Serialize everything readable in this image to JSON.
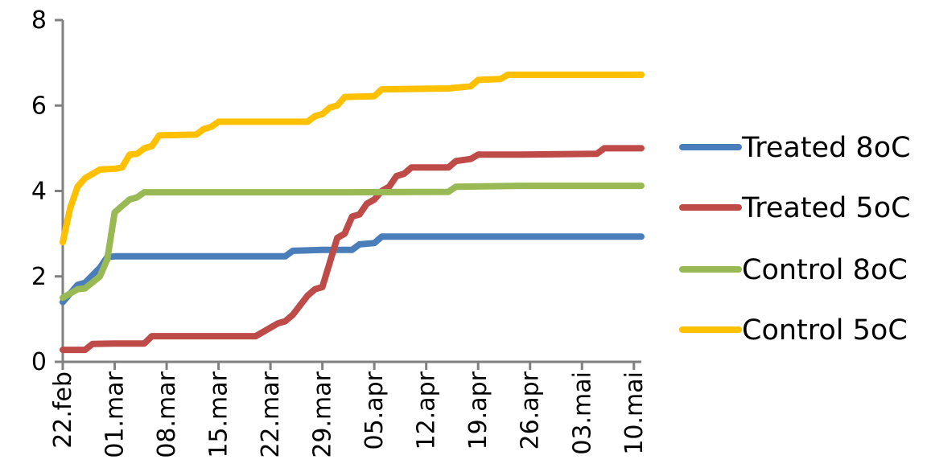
{
  "chart_data": {
    "type": "line",
    "title": "",
    "xlabel": "",
    "ylabel": "",
    "ylim": [
      0,
      8
    ],
    "y_ticks": [
      "0",
      "2",
      "4",
      "6",
      "8"
    ],
    "x_ticks": [
      "22.feb",
      "01.mar",
      "08.mar",
      "15.mar",
      "22.mar",
      "29.mar",
      "05.apr",
      "12.apr",
      "19.apr",
      "26.apr",
      "03.mai",
      "10.mai"
    ],
    "x_range": [
      "22.feb",
      "11.mai"
    ],
    "grid": false,
    "legend_position": "right",
    "series": [
      {
        "name": "Treated 8oC",
        "color": "#4a7ebb",
        "points": [
          [
            "22.feb",
            1.4
          ],
          [
            "23.feb",
            1.6
          ],
          [
            "24.feb",
            1.8
          ],
          [
            "25.feb",
            1.85
          ],
          [
            "27.feb",
            2.2
          ],
          [
            "28.feb",
            2.45
          ],
          [
            "01.mar",
            2.47
          ],
          [
            "10.mar",
            2.47
          ],
          [
            "20.mar",
            2.47
          ],
          [
            "24.mar",
            2.47
          ],
          [
            "25.mar",
            2.6
          ],
          [
            "29.mar",
            2.62
          ],
          [
            "02.apr",
            2.62
          ],
          [
            "03.apr",
            2.75
          ],
          [
            "05.apr",
            2.78
          ],
          [
            "06.apr",
            2.93
          ],
          [
            "15.apr",
            2.93
          ],
          [
            "01.mai",
            2.93
          ],
          [
            "11.mai",
            2.93
          ]
        ]
      },
      {
        "name": "Treated 5oC",
        "color": "#be4b48",
        "points": [
          [
            "22.feb",
            0.28
          ],
          [
            "25.feb",
            0.28
          ],
          [
            "26.feb",
            0.42
          ],
          [
            "01.mar",
            0.43
          ],
          [
            "05.mar",
            0.43
          ],
          [
            "06.mar",
            0.6
          ],
          [
            "10.mar",
            0.6
          ],
          [
            "20.mar",
            0.6
          ],
          [
            "23.mar",
            0.9
          ],
          [
            "24.mar",
            0.95
          ],
          [
            "25.mar",
            1.1
          ],
          [
            "27.mar",
            1.55
          ],
          [
            "28.mar",
            1.7
          ],
          [
            "29.mar",
            1.75
          ],
          [
            "31.mar",
            2.9
          ],
          [
            "01.apr",
            3.0
          ],
          [
            "02.apr",
            3.4
          ],
          [
            "03.apr",
            3.45
          ],
          [
            "04.apr",
            3.7
          ],
          [
            "05.apr",
            3.8
          ],
          [
            "06.apr",
            4.0
          ],
          [
            "07.apr",
            4.1
          ],
          [
            "08.apr",
            4.35
          ],
          [
            "09.apr",
            4.4
          ],
          [
            "10.apr",
            4.55
          ],
          [
            "15.apr",
            4.55
          ],
          [
            "16.apr",
            4.7
          ],
          [
            "18.apr",
            4.75
          ],
          [
            "19.apr",
            4.85
          ],
          [
            "25.apr",
            4.85
          ],
          [
            "05.mai",
            4.87
          ],
          [
            "06.mai",
            5.0
          ],
          [
            "11.mai",
            5.0
          ]
        ]
      },
      {
        "name": "Control 8oC",
        "color": "#98b954",
        "points": [
          [
            "22.feb",
            1.5
          ],
          [
            "24.feb",
            1.7
          ],
          [
            "25.feb",
            1.72
          ],
          [
            "27.feb",
            2.0
          ],
          [
            "28.feb",
            2.4
          ],
          [
            "01.mar",
            3.5
          ],
          [
            "03.mar",
            3.8
          ],
          [
            "04.mar",
            3.85
          ],
          [
            "05.mar",
            3.97
          ],
          [
            "10.mar",
            3.97
          ],
          [
            "20.mar",
            3.97
          ],
          [
            "01.apr",
            3.97
          ],
          [
            "15.apr",
            3.98
          ],
          [
            "16.apr",
            4.1
          ],
          [
            "25.apr",
            4.12
          ],
          [
            "11.mai",
            4.12
          ]
        ]
      },
      {
        "name": "Control 5oC",
        "color": "#ffc000",
        "points": [
          [
            "22.feb",
            2.8
          ],
          [
            "23.feb",
            3.6
          ],
          [
            "24.feb",
            4.1
          ],
          [
            "25.feb",
            4.3
          ],
          [
            "27.feb",
            4.5
          ],
          [
            "01.mar",
            4.52
          ],
          [
            "02.mar",
            4.55
          ],
          [
            "03.mar",
            4.85
          ],
          [
            "04.mar",
            4.87
          ],
          [
            "05.mar",
            5.0
          ],
          [
            "06.mar",
            5.05
          ],
          [
            "07.mar",
            5.3
          ],
          [
            "12.mar",
            5.32
          ],
          [
            "13.mar",
            5.45
          ],
          [
            "14.mar",
            5.5
          ],
          [
            "15.mar",
            5.62
          ],
          [
            "20.mar",
            5.62
          ],
          [
            "27.mar",
            5.62
          ],
          [
            "28.mar",
            5.75
          ],
          [
            "29.mar",
            5.8
          ],
          [
            "30.mar",
            5.95
          ],
          [
            "31.mar",
            6.0
          ],
          [
            "01.apr",
            6.2
          ],
          [
            "05.apr",
            6.22
          ],
          [
            "06.apr",
            6.38
          ],
          [
            "15.apr",
            6.4
          ],
          [
            "18.apr",
            6.45
          ],
          [
            "19.apr",
            6.6
          ],
          [
            "22.apr",
            6.62
          ],
          [
            "23.apr",
            6.72
          ],
          [
            "01.mai",
            6.72
          ],
          [
            "11.mai",
            6.72
          ]
        ]
      }
    ]
  }
}
